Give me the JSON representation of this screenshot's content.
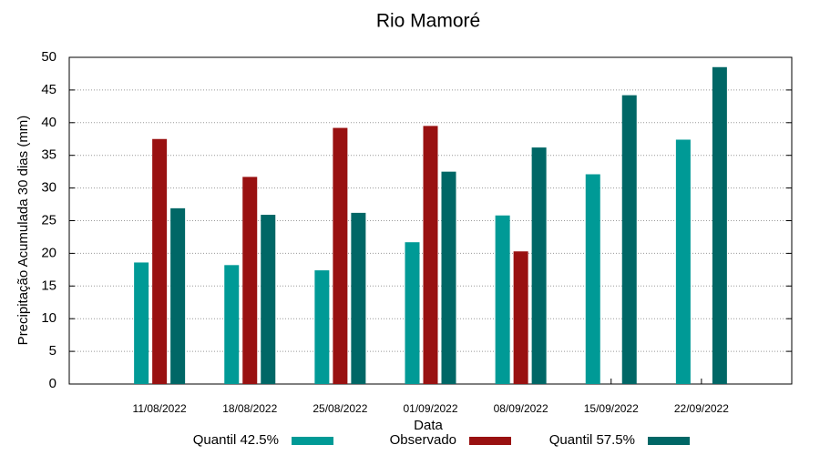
{
  "chart_data": {
    "type": "bar",
    "title": "Rio Mamoré",
    "x_label": "Data",
    "y_label": "Precipitação Acumulada 30 dias (mm)",
    "categories": [
      "11/08/2022",
      "18/08/2022",
      "25/08/2022",
      "01/09/2022",
      "08/09/2022",
      "15/09/2022",
      "22/09/2022"
    ],
    "series": [
      {
        "name": "Quantil 42.5%",
        "color": "#009a96",
        "values": [
          18.6,
          18.2,
          17.4,
          21.7,
          25.8,
          32.1,
          37.4
        ]
      },
      {
        "name": "Observado",
        "color": "#991111",
        "values": [
          37.5,
          31.7,
          39.2,
          39.5,
          20.3,
          null,
          null
        ]
      },
      {
        "name": "Quantil 57.5%",
        "color": "#006766",
        "values": [
          26.9,
          25.9,
          26.2,
          32.5,
          36.2,
          44.2,
          48.5
        ]
      }
    ],
    "ylim": [
      0,
      50
    ],
    "yticks": [
      0,
      5,
      10,
      15,
      20,
      25,
      30,
      35,
      40,
      45,
      50
    ],
    "grid": true,
    "legend": "bottom"
  }
}
